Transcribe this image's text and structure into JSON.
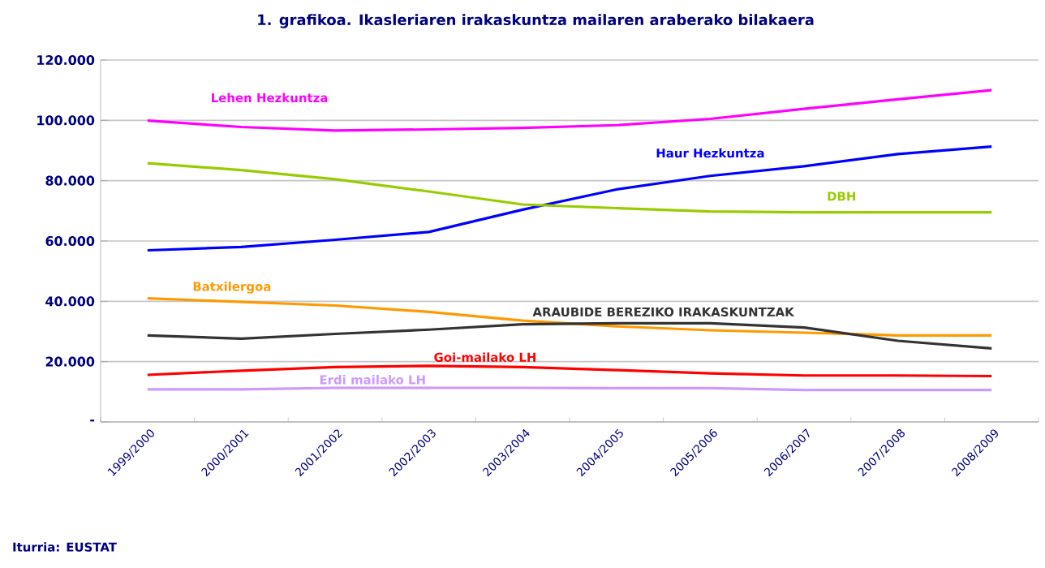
{
  "chart_data": {
    "type": "line",
    "title": "1. grafikoa. Ikasleriaren irakaskuntza mailaren araberako bilakaera",
    "categories": [
      "1999/2000",
      "2000/2001",
      "2001/2002",
      "2002/2003",
      "2003/2004",
      "2004/2005",
      "2005/2006",
      "2006/2007",
      "2007/2008",
      "2008/2009"
    ],
    "series": [
      {
        "name": "Lehen Hezkuntza",
        "color": "#ff00ff",
        "values": [
          99900,
          97800,
          96600,
          97000,
          97500,
          98400,
          100500,
          103800,
          107000,
          110000
        ]
      },
      {
        "name": "Haur Hezkuntza",
        "color": "#0000ff",
        "values": [
          56900,
          58000,
          60400,
          63000,
          70400,
          77100,
          81600,
          84800,
          88800,
          91300
        ]
      },
      {
        "name": "DBH",
        "color": "#99cc00",
        "values": [
          85800,
          83500,
          80500,
          76400,
          72100,
          70900,
          69800,
          69500,
          69500,
          69500
        ]
      },
      {
        "name": "Batxilergoa",
        "color": "#ff9900",
        "values": [
          41000,
          39800,
          38600,
          36500,
          33600,
          31700,
          30400,
          29600,
          28700,
          28700
        ]
      },
      {
        "name": "ARAUBIDE BEREZIKO IRAKASKUNTZAK",
        "color": "#333333",
        "values": [
          28700,
          27600,
          29200,
          30600,
          32400,
          32700,
          32700,
          31300,
          26900,
          24400
        ]
      },
      {
        "name": "Goi-mailako LH",
        "color": "#ff0000",
        "values": [
          15600,
          17000,
          18200,
          18600,
          18200,
          17200,
          16100,
          15400,
          15400,
          15200
        ]
      },
      {
        "name": "Erdi mailako LH",
        "color": "#cc99ff",
        "values": [
          10800,
          10800,
          11300,
          11300,
          11300,
          11200,
          11200,
          10600,
          10600,
          10600
        ]
      }
    ],
    "ylim": [
      0,
      120000
    ],
    "yticks": [
      {
        "value": 0,
        "label": "-"
      },
      {
        "value": 20000,
        "label": "20.000"
      },
      {
        "value": 40000,
        "label": "40.000"
      },
      {
        "value": 60000,
        "label": "60.000"
      },
      {
        "value": 80000,
        "label": "80.000"
      },
      {
        "value": 100000,
        "label": "100.000"
      },
      {
        "value": 120000,
        "label": "120.000"
      }
    ],
    "grid": "y",
    "legend": false,
    "marker": "none",
    "line_style": "solid",
    "annotations": [
      "Iturria: EUSTAT"
    ]
  }
}
